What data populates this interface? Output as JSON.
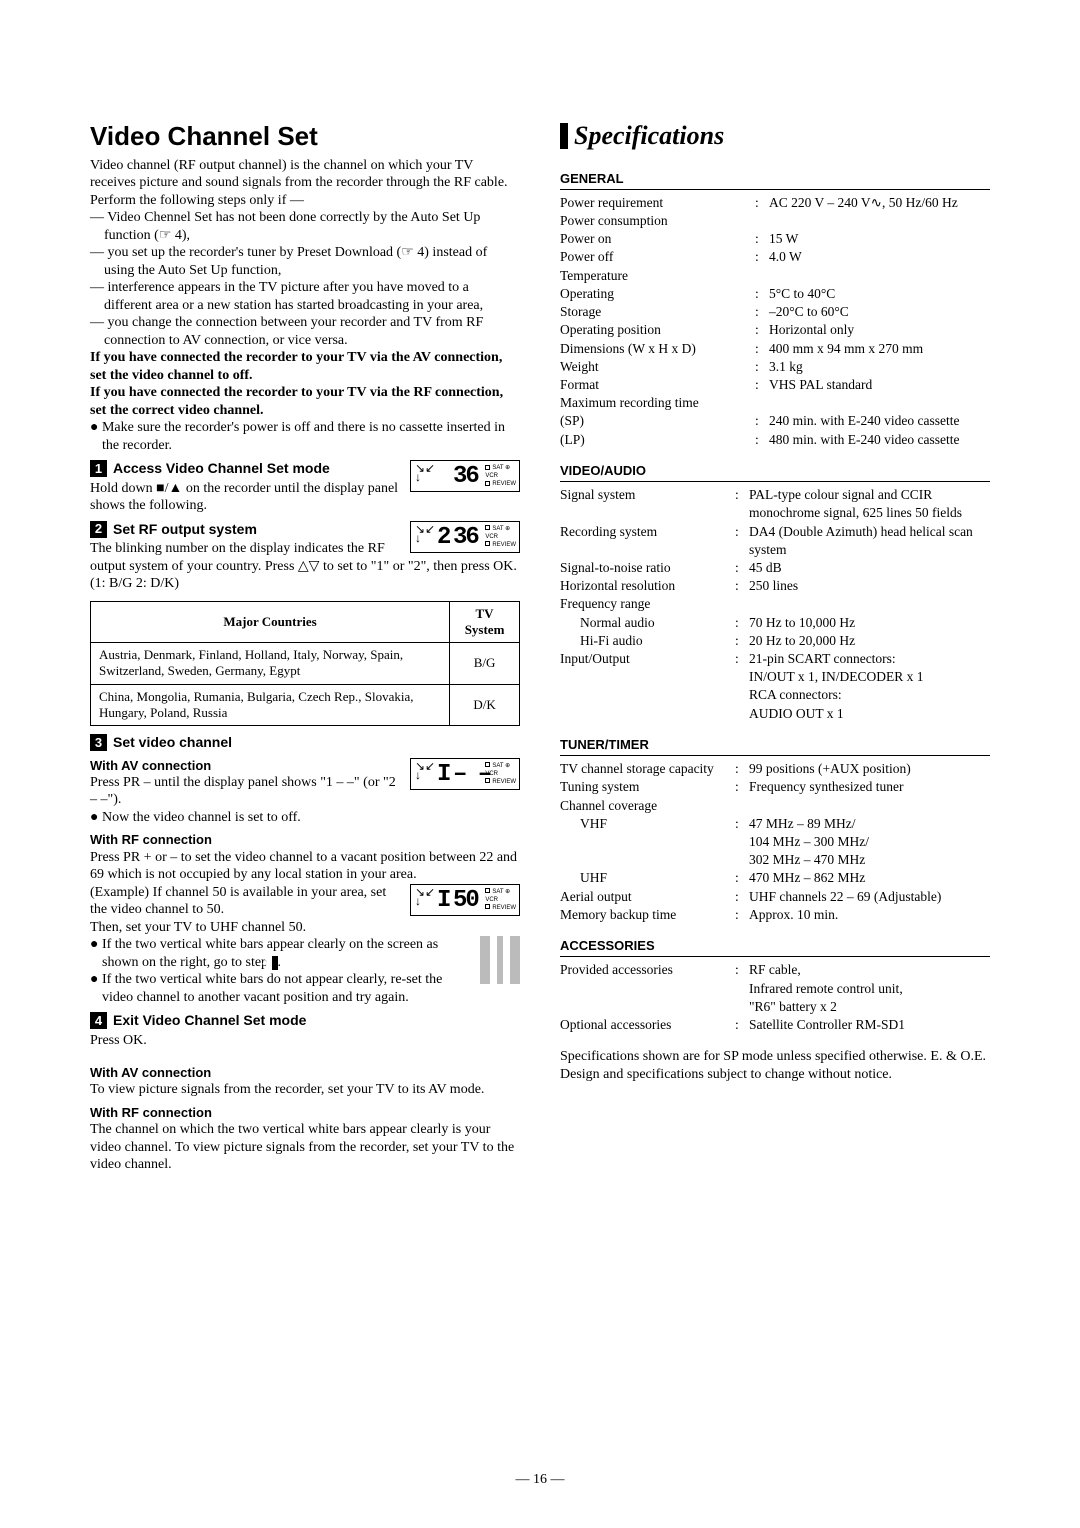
{
  "page_number": "— 16 —",
  "left": {
    "title": "Video Channel Set",
    "intro": [
      "Video channel (RF output channel) is the channel on which your TV receives picture and sound signals from the recorder through the RF cable.",
      "Perform the following steps only if —"
    ],
    "conditions": [
      "— Video Chennel Set has not been done correctly by the Auto Set Up function (☞ 4),",
      "— you set up the recorder's tuner by Preset Download (☞ 4) instead of using the Auto Set Up function,",
      "— interference appears in the TV picture after you have moved to a different area or a new station has started broadcasting in your area,",
      "— you change the connection between your recorder and TV from RF connection to AV connection, or vice versa."
    ],
    "if_av": "If you have connected the recorder to your TV via the AV connection, set the video channel to off.",
    "if_rf": "If you have connected the recorder to your TV via the RF connection, set the correct video channel.",
    "make_sure": "Make sure the recorder's power is off and there is no cassette inserted in the recorder.",
    "step1": {
      "num": "1",
      "title": "Access Video Channel Set mode",
      "body": "Hold down ■/▲ on the recorder until the display panel shows the following.",
      "panel_main": "36"
    },
    "step2": {
      "num": "2",
      "title": "Set RF output system",
      "body": "The blinking number on the display indicates the RF output system of your country. Press △▽ to set to \"1\" or \"2\", then press OK. (1: B/G 2: D/K)",
      "panel_prefix": "2",
      "panel_main": "36"
    },
    "table": {
      "h1": "Major Countries",
      "h2": "TV System",
      "rows": [
        [
          "Austria, Denmark, Finland, Holland, Italy, Norway, Spain, Switzerland, Sweden, Germany, Egypt",
          "B/G"
        ],
        [
          "China, Mongolia, Rumania, Bulgaria, Czech Rep., Slovakia, Hungary, Poland, Russia",
          "D/K"
        ]
      ]
    },
    "step3": {
      "num": "3",
      "title": "Set video channel",
      "av_head": "With AV connection",
      "av_body": "Press PR – until the display panel shows \"1 – –\" (or \"2 – –\").",
      "av_bullet": "Now the video channel is set to off.",
      "rf_head": "With RF connection",
      "rf_body": "Press PR + or – to set the video channel to a vacant position between 22 and 69 which is not occupied by any local station in your area.",
      "rf_example": "(Example) If channel 50 is available in your area, set the video channel to 50.\nThen, set your TV to UHF channel 50.",
      "rf_bullet_1a": "If the two vertical white bars appear clearly on the screen as shown on the right, go to step ",
      "rf_bullet_1b": "4",
      "rf_bullet_1c": ".",
      "rf_bullet_2": "If the two vertical white bars do not appear clearly, re-set the video channel to another vacant position and try again.",
      "panel3a_main": "– –",
      "panel3b_main": "50"
    },
    "step4": {
      "num": "4",
      "title": "Exit Video Channel Set mode",
      "body": "Press OK.",
      "av_head": "With AV connection",
      "av_body": "To view picture signals from the recorder, set your TV to its AV mode.",
      "rf_head": "With RF connection",
      "rf_body": "The channel on which the two vertical white bars appear clearly is your video channel. To view picture signals from the recorder, set your TV to the video channel."
    },
    "panel_labels": {
      "sat": "SAT ⊕",
      "vcr": "VCR",
      "review": "REVIEW"
    }
  },
  "right": {
    "title": "Specifications",
    "general": {
      "title": "GENERAL",
      "rows": [
        [
          "Power requirement",
          ":",
          "AC 220 V – 240 V∿, 50 Hz/60 Hz",
          ""
        ],
        [
          "Power consumption",
          "",
          "",
          ""
        ],
        [
          "Power on",
          ":",
          "15 W",
          "indent1"
        ],
        [
          "Power off",
          ":",
          "4.0 W",
          "indent1"
        ],
        [
          "Temperature",
          "",
          "",
          ""
        ],
        [
          "Operating",
          ":",
          "5°C to 40°C",
          "indent1"
        ],
        [
          "Storage",
          ":",
          "–20°C to 60°C",
          "indent1"
        ],
        [
          "Operating position",
          ":",
          "Horizontal only",
          ""
        ],
        [
          "Dimensions (W x H x D)",
          ":",
          "400 mm x 94 mm x 270 mm",
          ""
        ],
        [
          "Weight",
          ":",
          "3.1 kg",
          ""
        ],
        [
          "Format",
          ":",
          "VHS PAL standard",
          ""
        ],
        [
          "Maximum recording time",
          "",
          "",
          ""
        ],
        [
          "(SP)",
          ":",
          "240 min. with E-240 video cassette",
          "indent1"
        ],
        [
          "(LP)",
          ":",
          "480 min. with E-240 video cassette",
          "indent1"
        ]
      ]
    },
    "video_audio": {
      "title": "VIDEO/AUDIO",
      "rows": [
        [
          "Signal system",
          ":",
          "PAL-type colour signal and CCIR monochrome signal, 625 lines 50 fields",
          ""
        ],
        [
          "Recording system",
          ":",
          "DA4 (Double Azimuth) head helical scan system",
          ""
        ],
        [
          "Signal-to-noise ratio",
          ":",
          "45 dB",
          ""
        ],
        [
          "Horizontal resolution",
          ":",
          "250 lines",
          ""
        ],
        [
          "Frequency range",
          "",
          "",
          ""
        ],
        [
          "Normal audio",
          ":",
          "70 Hz to 10,000 Hz",
          "indent1"
        ],
        [
          "Hi-Fi audio",
          ":",
          "20 Hz to 20,000 Hz",
          "indent1"
        ],
        [
          "Input/Output",
          ":",
          "21-pin SCART connectors:\nIN/OUT x 1, IN/DECODER x 1\nRCA connectors:\nAUDIO OUT x 1",
          ""
        ]
      ]
    },
    "tuner": {
      "title": "TUNER/TIMER",
      "rows": [
        [
          "TV channel storage capacity",
          ":",
          "99 positions (+AUX position)",
          ""
        ],
        [
          "Tuning system",
          ":",
          "Frequency synthesized tuner",
          ""
        ],
        [
          "Channel coverage",
          "",
          "",
          ""
        ],
        [
          "VHF",
          ":",
          "47 MHz – 89 MHz/\n104 MHz – 300 MHz/\n302 MHz – 470 MHz",
          "indent1"
        ],
        [
          "UHF",
          ":",
          "470 MHz – 862 MHz",
          "indent1"
        ],
        [
          "Aerial output",
          ":",
          "UHF channels 22 – 69 (Adjustable)",
          ""
        ],
        [
          "Memory backup time",
          ":",
          "Approx. 10 min.",
          ""
        ]
      ]
    },
    "accessories": {
      "title": "ACCESSORIES",
      "rows": [
        [
          "Provided accessories",
          ":",
          "RF cable,\nInfrared remote control unit,\n\"R6\" battery x 2",
          ""
        ],
        [
          "Optional accessories",
          ":",
          "Satellite Controller RM-SD1",
          ""
        ]
      ]
    },
    "footer": "Specifications shown are for SP mode unless specified otherwise. E. & O.E. Design and specifications subject to change without notice."
  }
}
